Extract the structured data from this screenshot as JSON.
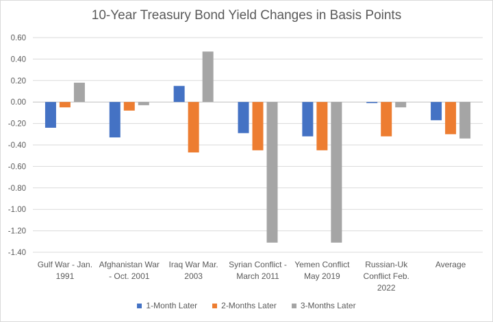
{
  "chart_data": {
    "type": "bar",
    "title": "10-Year Treasury Bond Yield Changes in Basis Points",
    "categories": [
      [
        "Gulf War - Jan.",
        "1991"
      ],
      [
        "Afghanistan War",
        "- Oct. 2001"
      ],
      [
        "Iraq War Mar.",
        "2003"
      ],
      [
        "Syrian Conflict -",
        "March 2011"
      ],
      [
        "Yemen Conflict",
        "May 2019"
      ],
      [
        "Russian-Uk",
        "Conflict Feb.",
        "2022"
      ],
      [
        "Average"
      ]
    ],
    "series": [
      {
        "name": "1-Month Later",
        "color": "#4472c4",
        "values": [
          -0.24,
          -0.33,
          0.15,
          -0.29,
          -0.32,
          -0.01,
          -0.17
        ]
      },
      {
        "name": "2-Months Later",
        "color": "#ed7d31",
        "values": [
          -0.05,
          -0.08,
          -0.47,
          -0.45,
          -0.45,
          -0.32,
          -0.3
        ]
      },
      {
        "name": "3-Months Later",
        "color": "#a5a5a5",
        "values": [
          0.18,
          -0.03,
          0.47,
          -1.31,
          -1.31,
          -0.05,
          -0.34
        ]
      }
    ],
    "yticks": [
      "0.60",
      "0.40",
      "0.20",
      "0.00",
      "-0.20",
      "-0.40",
      "-0.60",
      "-0.80",
      "-1.00",
      "-1.20",
      "-1.40"
    ],
    "ylim": [
      -1.4,
      0.6
    ],
    "grid": true,
    "legend": "bottom"
  }
}
